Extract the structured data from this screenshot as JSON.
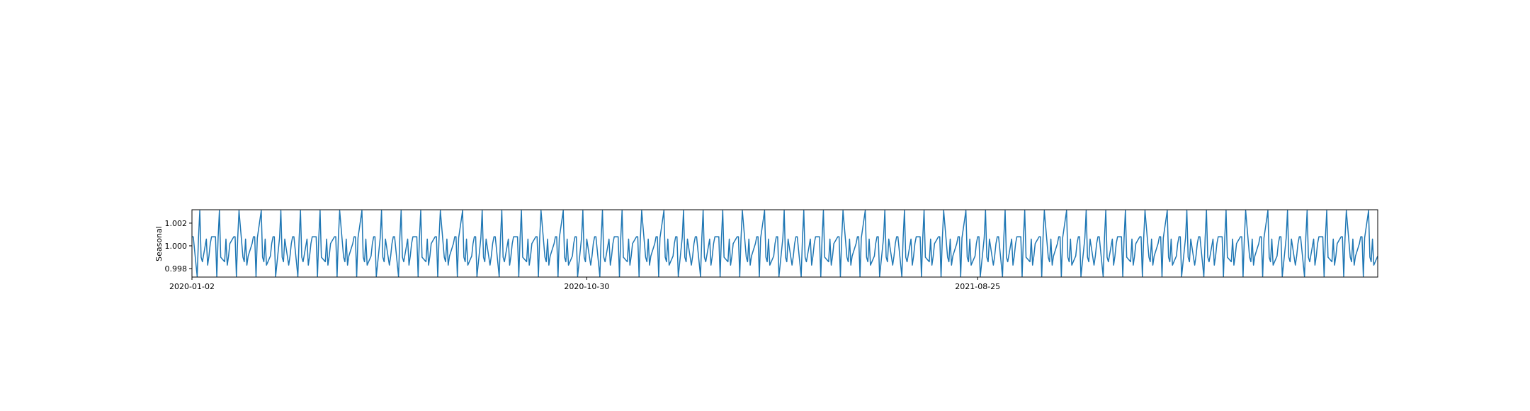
{
  "chart_data": {
    "type": "line",
    "title": "",
    "xlabel": "",
    "ylabel": "Seasonal",
    "x_ticks": [
      "2020-01-02",
      "2020-10-30",
      "2021-08-25"
    ],
    "y_ticks": [
      "0.998",
      "1.000",
      "1.002"
    ],
    "xlim": [
      "2020-01-02",
      "2022-06-27"
    ],
    "ylim": [
      0.99725,
      1.00318
    ],
    "grid": false,
    "legend": "none",
    "series": [
      {
        "color": "#1f77b4",
        "pattern": [
          1.0008,
          1.0008,
          0.9973,
          1.0007,
          1.0031,
          0.999,
          0.9986,
          1.0006,
          0.9983,
          0.9991,
          1.0002
        ],
        "y": []
      }
    ]
  }
}
